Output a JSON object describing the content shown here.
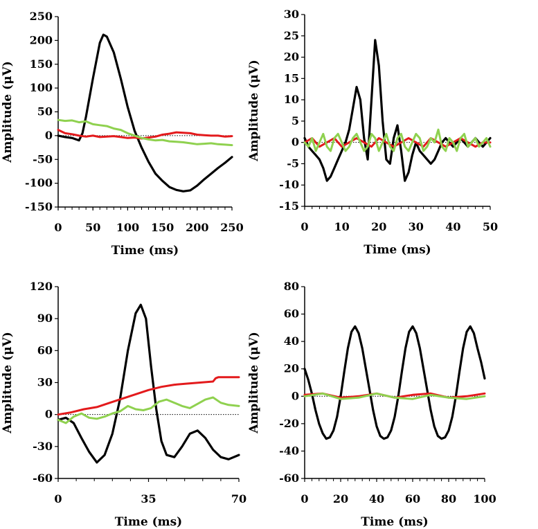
{
  "chart_data": [
    {
      "type": "line",
      "xlabel": "Time (ms)",
      "ylabel": "Amplitude (μV)",
      "xlim": [
        0,
        250
      ],
      "ylim": [
        -150,
        250
      ],
      "xticks": [
        "0",
        "50",
        "100",
        "150",
        "200",
        "250"
      ],
      "yticks": [
        "-150",
        "-100",
        "-50",
        "0",
        "50",
        "100",
        "150",
        "200",
        "250"
      ],
      "zero_line": "dotted",
      "series": [
        {
          "color": "#000000",
          "x": [
            0,
            10,
            20,
            30,
            35,
            40,
            50,
            60,
            65,
            70,
            80,
            90,
            100,
            110,
            120,
            130,
            140,
            150,
            160,
            170,
            180,
            190,
            200,
            210,
            220,
            230,
            240,
            250
          ],
          "y": [
            0,
            -3,
            -5,
            -10,
            5,
            40,
            120,
            195,
            212,
            208,
            175,
            120,
            60,
            10,
            -25,
            -55,
            -80,
            -95,
            -108,
            -114,
            -117,
            -115,
            -105,
            -92,
            -80,
            -68,
            -57,
            -45
          ]
        },
        {
          "color": "#e31a1c",
          "x": [
            0,
            10,
            20,
            30,
            40,
            50,
            60,
            70,
            80,
            90,
            100,
            110,
            120,
            130,
            140,
            150,
            160,
            170,
            180,
            190,
            200,
            210,
            220,
            230,
            240,
            250
          ],
          "y": [
            12,
            5,
            3,
            0,
            -2,
            0,
            -3,
            -2,
            -1,
            -3,
            -5,
            -4,
            -6,
            -4,
            -2,
            2,
            4,
            7,
            6,
            5,
            2,
            1,
            0,
            0,
            -2,
            -1
          ]
        },
        {
          "color": "#8fd14f",
          "x": [
            0,
            10,
            20,
            30,
            40,
            50,
            60,
            70,
            80,
            90,
            100,
            110,
            120,
            130,
            140,
            150,
            160,
            170,
            180,
            190,
            200,
            210,
            220,
            230,
            240,
            250
          ],
          "y": [
            33,
            31,
            32,
            28,
            30,
            24,
            22,
            20,
            15,
            12,
            5,
            0,
            -5,
            -8,
            -10,
            -9,
            -12,
            -13,
            -14,
            -16,
            -18,
            -17,
            -16,
            -18,
            -19,
            -20
          ]
        }
      ]
    },
    {
      "type": "line",
      "xlabel": "Time (ms)",
      "ylabel": "Amplitude (μV)",
      "xlim": [
        0,
        50
      ],
      "ylim": [
        -15,
        30
      ],
      "xticks": [
        "0",
        "10",
        "20",
        "30",
        "40",
        "50"
      ],
      "yticks": [
        "-15",
        "-10",
        "-5",
        "0",
        "5",
        "10",
        "15",
        "20",
        "25",
        "30"
      ],
      "zero_line": "dotted",
      "series": [
        {
          "color": "#000000",
          "x": [
            0,
            1,
            2,
            3,
            4,
            5,
            6,
            7,
            8,
            9,
            10,
            11,
            12,
            13,
            14,
            15,
            16,
            17,
            18,
            19,
            20,
            21,
            22,
            23,
            24,
            25,
            26,
            27,
            28,
            29,
            30,
            31,
            32,
            33,
            34,
            35,
            36,
            37,
            38,
            39,
            40,
            41,
            42,
            43,
            44,
            45,
            46,
            47,
            48,
            49,
            50
          ],
          "y": [
            1,
            -1,
            -2,
            -3,
            -4,
            -6,
            -9,
            -8,
            -6,
            -4,
            -2,
            0,
            3,
            8,
            13,
            10,
            1,
            -4,
            10,
            24,
            18,
            5,
            -4,
            -5,
            1,
            4,
            -2,
            -9,
            -7,
            -3,
            0,
            -2,
            -3,
            -4,
            -5,
            -4,
            -2,
            0,
            1,
            0,
            -1,
            0,
            1,
            0,
            -1,
            0,
            1,
            0,
            -1,
            0,
            1
          ]
        },
        {
          "color": "#e31a1c",
          "x": [
            0,
            2,
            4,
            6,
            8,
            10,
            12,
            14,
            16,
            18,
            20,
            22,
            24,
            26,
            28,
            30,
            32,
            34,
            36,
            38,
            40,
            42,
            44,
            46,
            48,
            50
          ],
          "y": [
            0,
            1,
            -1,
            0,
            1,
            -1,
            0,
            1,
            0,
            -1,
            1,
            0,
            -1,
            0,
            1,
            0,
            -1,
            1,
            0,
            -1,
            0,
            1,
            0,
            -1,
            0,
            0
          ]
        },
        {
          "color": "#8fd14f",
          "x": [
            0,
            1,
            2,
            3,
            4,
            5,
            6,
            7,
            8,
            9,
            10,
            11,
            12,
            13,
            14,
            15,
            16,
            17,
            18,
            19,
            20,
            21,
            22,
            23,
            24,
            25,
            26,
            27,
            28,
            29,
            30,
            31,
            32,
            33,
            34,
            35,
            36,
            37,
            38,
            39,
            40,
            41,
            42,
            43,
            44,
            45,
            46,
            47,
            48,
            49,
            50
          ],
          "y": [
            0,
            -1,
            1,
            -2,
            0,
            2,
            -1,
            -2,
            1,
            2,
            0,
            -2,
            -1,
            1,
            2,
            0,
            -2,
            -1,
            2,
            1,
            -2,
            0,
            2,
            -1,
            -2,
            1,
            2,
            -1,
            -2,
            0,
            2,
            1,
            -2,
            -1,
            1,
            0,
            3,
            -1,
            -2,
            1,
            0,
            -2,
            1,
            2,
            -1,
            0,
            1,
            -1,
            0,
            1,
            -1
          ]
        }
      ]
    },
    {
      "type": "line",
      "xlabel": "Time (ms)",
      "ylabel": "Amplitude (μV)",
      "xlim": [
        0,
        70
      ],
      "ylim": [
        -60,
        120
      ],
      "xticks": [
        "0",
        "35",
        "70"
      ],
      "yticks": [
        "-60",
        "-30",
        "0",
        "30",
        "60",
        "90",
        "120"
      ],
      "zero_line": "dotted",
      "series": [
        {
          "color": "#000000",
          "x": [
            0,
            3,
            6,
            9,
            12,
            15,
            18,
            21,
            24,
            27,
            30,
            32,
            34,
            36,
            38,
            40,
            42,
            45,
            48,
            51,
            54,
            57,
            60,
            63,
            66,
            70
          ],
          "y": [
            -5,
            -3,
            -8,
            -22,
            -35,
            -45,
            -38,
            -18,
            15,
            60,
            95,
            103,
            90,
            45,
            5,
            -25,
            -38,
            -40,
            -30,
            -18,
            -15,
            -22,
            -33,
            -40,
            -42,
            -38
          ]
        },
        {
          "color": "#e31a1c",
          "x": [
            0,
            5,
            10,
            15,
            20,
            25,
            30,
            35,
            40,
            45,
            50,
            55,
            60,
            61,
            62,
            65,
            70
          ],
          "y": [
            0,
            2,
            5,
            7,
            11,
            15,
            19,
            23,
            26,
            28,
            29,
            30,
            31,
            34,
            35,
            35,
            35
          ]
        },
        {
          "color": "#8fd14f",
          "x": [
            0,
            3,
            6,
            9,
            12,
            15,
            18,
            21,
            24,
            27,
            30,
            33,
            36,
            39,
            42,
            45,
            48,
            51,
            54,
            57,
            60,
            63,
            66,
            70
          ],
          "y": [
            -5,
            -8,
            -2,
            1,
            -3,
            -4,
            -2,
            1,
            3,
            8,
            5,
            4,
            6,
            12,
            14,
            11,
            8,
            6,
            10,
            14,
            16,
            11,
            9,
            8
          ]
        }
      ]
    },
    {
      "type": "line",
      "xlabel": "Time (ms)",
      "ylabel": "Amplitude (μV)",
      "xlim": [
        0,
        100
      ],
      "ylim": [
        -60,
        80
      ],
      "xticks": [
        "0",
        "20",
        "40",
        "60",
        "80",
        "100"
      ],
      "yticks": [
        "-60",
        "-40",
        "-20",
        "0",
        "20",
        "40",
        "60",
        "80"
      ],
      "zero_line": "dotted",
      "series": [
        {
          "color": "#000000",
          "x": [
            0,
            2,
            4,
            6,
            8,
            10,
            12,
            14,
            16,
            18,
            20,
            22,
            24,
            26,
            28,
            30,
            32,
            34,
            36,
            38,
            40,
            42,
            44,
            46,
            48,
            50,
            52,
            54,
            56,
            58,
            60,
            62,
            64,
            66,
            68,
            70,
            72,
            74,
            76,
            78,
            80,
            82,
            84,
            86,
            88,
            90,
            92,
            94,
            96,
            98,
            100
          ],
          "y": [
            20,
            12,
            2,
            -10,
            -20,
            -27,
            -31,
            -30,
            -25,
            -15,
            0,
            18,
            35,
            47,
            51,
            46,
            35,
            20,
            5,
            -10,
            -22,
            -29,
            -31,
            -30,
            -25,
            -15,
            0,
            18,
            35,
            47,
            51,
            46,
            35,
            20,
            5,
            -10,
            -22,
            -29,
            -31,
            -30,
            -25,
            -15,
            0,
            18,
            35,
            47,
            51,
            46,
            35,
            25,
            13
          ]
        },
        {
          "color": "#e31a1c",
          "x": [
            0,
            10,
            20,
            30,
            40,
            50,
            60,
            70,
            80,
            90,
            100
          ],
          "y": [
            1,
            2,
            -1,
            0,
            2,
            -1,
            1,
            2,
            -1,
            0,
            2
          ]
        },
        {
          "color": "#8fd14f",
          "x": [
            0,
            10,
            20,
            30,
            40,
            50,
            60,
            70,
            80,
            90,
            100
          ],
          "y": [
            0,
            2,
            -2,
            -1,
            2,
            -1,
            -2,
            1,
            -1,
            -2,
            0
          ]
        }
      ]
    }
  ]
}
